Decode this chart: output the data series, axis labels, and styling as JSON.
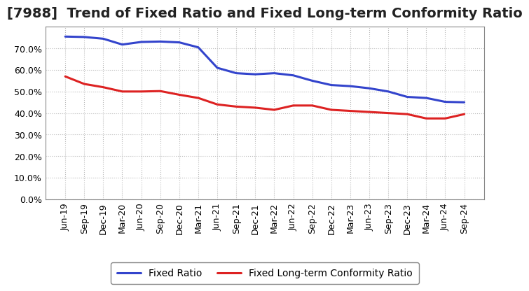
{
  "title": "[7988]  Trend of Fixed Ratio and Fixed Long-term Conformity Ratio",
  "x_labels": [
    "Jun-19",
    "Sep-19",
    "Dec-19",
    "Mar-20",
    "Jun-20",
    "Sep-20",
    "Dec-20",
    "Mar-21",
    "Jun-21",
    "Sep-21",
    "Dec-21",
    "Mar-22",
    "Jun-22",
    "Sep-22",
    "Dec-22",
    "Mar-23",
    "Jun-23",
    "Sep-23",
    "Dec-23",
    "Mar-24",
    "Jun-24",
    "Sep-24"
  ],
  "fixed_ratio": [
    75.5,
    75.3,
    74.5,
    71.8,
    73.0,
    73.2,
    72.8,
    70.5,
    61.0,
    58.5,
    58.0,
    58.5,
    57.5,
    55.0,
    53.0,
    52.5,
    51.5,
    50.0,
    47.5,
    47.0,
    45.2,
    45.0
  ],
  "fixed_lt_ratio": [
    57.0,
    53.5,
    52.0,
    50.0,
    50.0,
    50.2,
    48.5,
    47.0,
    44.0,
    43.0,
    42.5,
    41.5,
    43.5,
    43.5,
    41.5,
    41.0,
    40.5,
    40.0,
    39.5,
    37.5,
    37.5,
    39.5
  ],
  "fixed_ratio_color": "#3344cc",
  "fixed_lt_ratio_color": "#dd2222",
  "ylim": [
    0,
    80
  ],
  "yticks": [
    0,
    10,
    20,
    30,
    40,
    50,
    60,
    70
  ],
  "background_color": "#ffffff",
  "plot_bg_color": "#ffffff",
  "grid_color": "#bbbbbb",
  "title_fontsize": 14,
  "tick_fontsize": 9,
  "legend_fontsize": 10
}
